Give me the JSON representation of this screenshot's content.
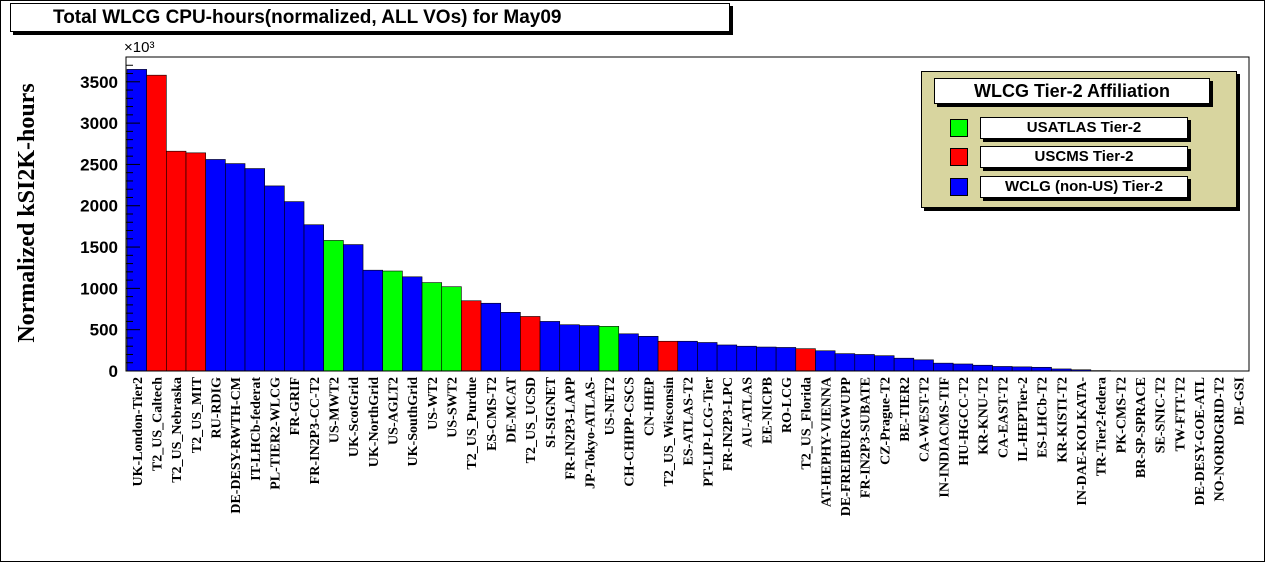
{
  "chart_data": {
    "type": "bar",
    "title": "Total WLCG CPU-hours(normalized, ALL VOs) for May09",
    "ylabel": "Normalized kSI2K-hours",
    "y_multiplier": "×10³",
    "ylim": [
      0,
      3800
    ],
    "yticks": [
      0,
      500,
      1000,
      1500,
      2000,
      2500,
      3000,
      3500
    ],
    "legend": {
      "title": "WLCG Tier-2 Affiliation",
      "position": "top-right",
      "entries": [
        {
          "label": "USATLAS Tier-2",
          "color": "#00ff00",
          "group": "usatlas"
        },
        {
          "label": "USCMS Tier-2",
          "color": "#ff0000",
          "group": "uscms"
        },
        {
          "label": "WCLG (non-US) Tier-2",
          "color": "#0000ff",
          "group": "wlcg"
        }
      ]
    },
    "colors": {
      "usatlas": "#00ff00",
      "uscms": "#ff0000",
      "wlcg": "#0000ff"
    },
    "bars": [
      {
        "name": "UK-London-Tier2",
        "value": 3650,
        "group": "wlcg"
      },
      {
        "name": "T2_US_Caltech",
        "value": 3580,
        "group": "uscms"
      },
      {
        "name": "T2_US_Nebraska",
        "value": 2660,
        "group": "uscms"
      },
      {
        "name": "T2_US_MIT",
        "value": 2640,
        "group": "uscms"
      },
      {
        "name": "RU-RDIG",
        "value": 2560,
        "group": "wlcg"
      },
      {
        "name": "DE-DESY-RWTH-CM",
        "value": 2510,
        "group": "wlcg"
      },
      {
        "name": "IT-LHCb-federat",
        "value": 2450,
        "group": "wlcg"
      },
      {
        "name": "PL-TIER2-WLCG",
        "value": 2240,
        "group": "wlcg"
      },
      {
        "name": "FR-GRIF",
        "value": 2050,
        "group": "wlcg"
      },
      {
        "name": "FR-IN2P3-CC-T2",
        "value": 1770,
        "group": "wlcg"
      },
      {
        "name": "US-MWT2",
        "value": 1580,
        "group": "usatlas"
      },
      {
        "name": "UK-ScotGrid",
        "value": 1530,
        "group": "wlcg"
      },
      {
        "name": "UK-NorthGrid",
        "value": 1220,
        "group": "wlcg"
      },
      {
        "name": "US-AGLT2",
        "value": 1210,
        "group": "usatlas"
      },
      {
        "name": "UK-SouthGrid",
        "value": 1140,
        "group": "wlcg"
      },
      {
        "name": "US-WT2",
        "value": 1070,
        "group": "usatlas"
      },
      {
        "name": "US-SWT2",
        "value": 1020,
        "group": "usatlas"
      },
      {
        "name": "T2_US_Purdue",
        "value": 850,
        "group": "uscms"
      },
      {
        "name": "ES-CMS-T2",
        "value": 820,
        "group": "wlcg"
      },
      {
        "name": "DE-MCAT",
        "value": 710,
        "group": "wlcg"
      },
      {
        "name": "T2_US_UCSD",
        "value": 660,
        "group": "uscms"
      },
      {
        "name": "SI-SIGNET",
        "value": 600,
        "group": "wlcg"
      },
      {
        "name": "FR-IN2P3-LAPP",
        "value": 560,
        "group": "wlcg"
      },
      {
        "name": "JP-Tokyo-ATLAS-",
        "value": 550,
        "group": "wlcg"
      },
      {
        "name": "US-NET2",
        "value": 540,
        "group": "usatlas"
      },
      {
        "name": "CH-CHIPP-CSCS",
        "value": 450,
        "group": "wlcg"
      },
      {
        "name": "CN-IHEP",
        "value": 420,
        "group": "wlcg"
      },
      {
        "name": "T2_US_Wisconsin",
        "value": 360,
        "group": "uscms"
      },
      {
        "name": "ES-ATLAS-T2",
        "value": 360,
        "group": "wlcg"
      },
      {
        "name": "PT-LIP-LCG-Tier",
        "value": 345,
        "group": "wlcg"
      },
      {
        "name": "FR-IN2P3-LPC",
        "value": 315,
        "group": "wlcg"
      },
      {
        "name": "AU-ATLAS",
        "value": 300,
        "group": "wlcg"
      },
      {
        "name": "EE-NICPB",
        "value": 290,
        "group": "wlcg"
      },
      {
        "name": "RO-LCG",
        "value": 285,
        "group": "wlcg"
      },
      {
        "name": "T2_US_Florida",
        "value": 270,
        "group": "uscms"
      },
      {
        "name": "AT-HEPHY-VIENNA",
        "value": 245,
        "group": "wlcg"
      },
      {
        "name": "DE-FREIBURGWUPP",
        "value": 210,
        "group": "wlcg"
      },
      {
        "name": "FR-IN2P3-SUBATE",
        "value": 200,
        "group": "wlcg"
      },
      {
        "name": "CZ-Prague-T2",
        "value": 185,
        "group": "wlcg"
      },
      {
        "name": "BE-TIER2",
        "value": 155,
        "group": "wlcg"
      },
      {
        "name": "CA-WEST-T2",
        "value": 135,
        "group": "wlcg"
      },
      {
        "name": "IN-INDIACMS-TIF",
        "value": 95,
        "group": "wlcg"
      },
      {
        "name": "HU-HGCC-T2",
        "value": 85,
        "group": "wlcg"
      },
      {
        "name": "KR-KNU-T2",
        "value": 70,
        "group": "wlcg"
      },
      {
        "name": "CA-EAST-T2",
        "value": 55,
        "group": "wlcg"
      },
      {
        "name": "IL-HEPTier-2",
        "value": 50,
        "group": "wlcg"
      },
      {
        "name": "ES-LHCb-T2",
        "value": 45,
        "group": "wlcg"
      },
      {
        "name": "KR-KISTI-T2",
        "value": 25,
        "group": "wlcg"
      },
      {
        "name": "IN-DAE-KOLKATA-",
        "value": 15,
        "group": "wlcg"
      },
      {
        "name": "TR-Tier2-federa",
        "value": 5,
        "group": "wlcg"
      },
      {
        "name": "PK-CMS-T2",
        "value": 3,
        "group": "wlcg"
      },
      {
        "name": "BR-SP-SPRACE",
        "value": 2,
        "group": "wlcg"
      },
      {
        "name": "SE-SNIC-T2",
        "value": 1,
        "group": "wlcg"
      },
      {
        "name": "TW-FTT-T2",
        "value": 1,
        "group": "wlcg"
      },
      {
        "name": "DE-DESY-GOE-ATL",
        "value": 0,
        "group": "wlcg"
      },
      {
        "name": "NO-NORDGRID-T2",
        "value": 0,
        "group": "wlcg"
      },
      {
        "name": "DE-GSI",
        "value": 0,
        "group": "wlcg"
      }
    ]
  }
}
